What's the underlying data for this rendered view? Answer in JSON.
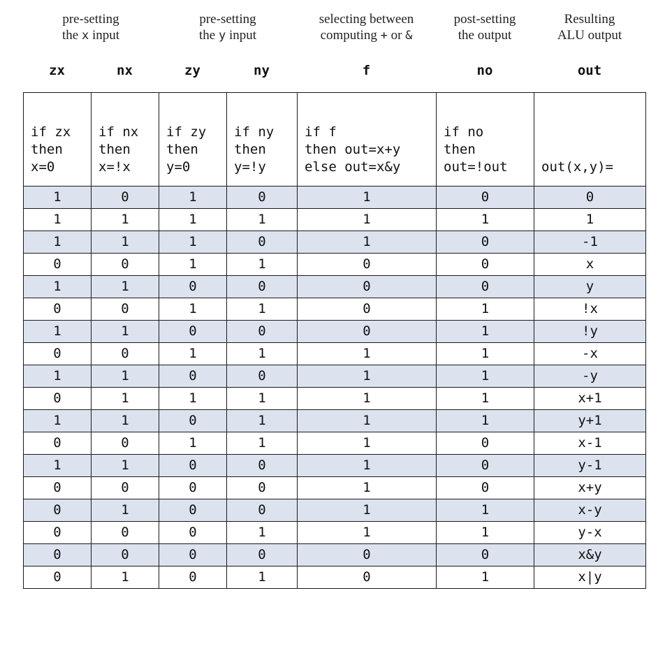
{
  "groups": [
    {
      "line1": "pre-setting",
      "line2_pre": "the ",
      "line2_mono": "x",
      "line2_post": " input"
    },
    {
      "line1": "pre-setting",
      "line2_pre": "the ",
      "line2_mono": "y",
      "line2_post": " input"
    },
    {
      "line1": "selecting between",
      "line2_pre": "computing ",
      "line2_mono": "+",
      "line2_post": " or ",
      "line2_mono2": "&"
    },
    {
      "line1": "post-setting",
      "line2_pre": "the output",
      "line2_mono": "",
      "line2_post": ""
    },
    {
      "line1": "Resulting",
      "line2_pre": "ALU output",
      "line2_mono": "",
      "line2_post": ""
    }
  ],
  "columns": [
    "zx",
    "nx",
    "zy",
    "ny",
    "f",
    "no",
    "out"
  ],
  "descriptions": [
    "if zx\nthen\nx=0",
    "if nx\nthen\nx=!x",
    "if zy\nthen\ny=0",
    "if ny\nthen\ny=!y",
    "if f\nthen out=x+y\nelse out=x&y",
    "if no\nthen\nout=!out",
    "out(x,y)="
  ],
  "rows": [
    [
      "1",
      "0",
      "1",
      "0",
      "1",
      "0",
      "0"
    ],
    [
      "1",
      "1",
      "1",
      "1",
      "1",
      "1",
      "1"
    ],
    [
      "1",
      "1",
      "1",
      "0",
      "1",
      "0",
      "-1"
    ],
    [
      "0",
      "0",
      "1",
      "1",
      "0",
      "0",
      "x"
    ],
    [
      "1",
      "1",
      "0",
      "0",
      "0",
      "0",
      "y"
    ],
    [
      "0",
      "0",
      "1",
      "1",
      "0",
      "1",
      "!x"
    ],
    [
      "1",
      "1",
      "0",
      "0",
      "0",
      "1",
      "!y"
    ],
    [
      "0",
      "0",
      "1",
      "1",
      "1",
      "1",
      "-x"
    ],
    [
      "1",
      "1",
      "0",
      "0",
      "1",
      "1",
      "-y"
    ],
    [
      "0",
      "1",
      "1",
      "1",
      "1",
      "1",
      "x+1"
    ],
    [
      "1",
      "1",
      "0",
      "1",
      "1",
      "1",
      "y+1"
    ],
    [
      "0",
      "0",
      "1",
      "1",
      "1",
      "0",
      "x-1"
    ],
    [
      "1",
      "1",
      "0",
      "0",
      "1",
      "0",
      "y-1"
    ],
    [
      "0",
      "0",
      "0",
      "0",
      "1",
      "0",
      "x+y"
    ],
    [
      "0",
      "1",
      "0",
      "0",
      "1",
      "1",
      "x-y"
    ],
    [
      "0",
      "0",
      "0",
      "1",
      "1",
      "1",
      "y-x"
    ],
    [
      "0",
      "0",
      "0",
      "0",
      "0",
      "0",
      "x&y"
    ],
    [
      "0",
      "1",
      "0",
      "1",
      "0",
      "1",
      "x|y"
    ]
  ],
  "colors": {
    "shade": "#dce3ef",
    "border": "#1a1a1a"
  }
}
